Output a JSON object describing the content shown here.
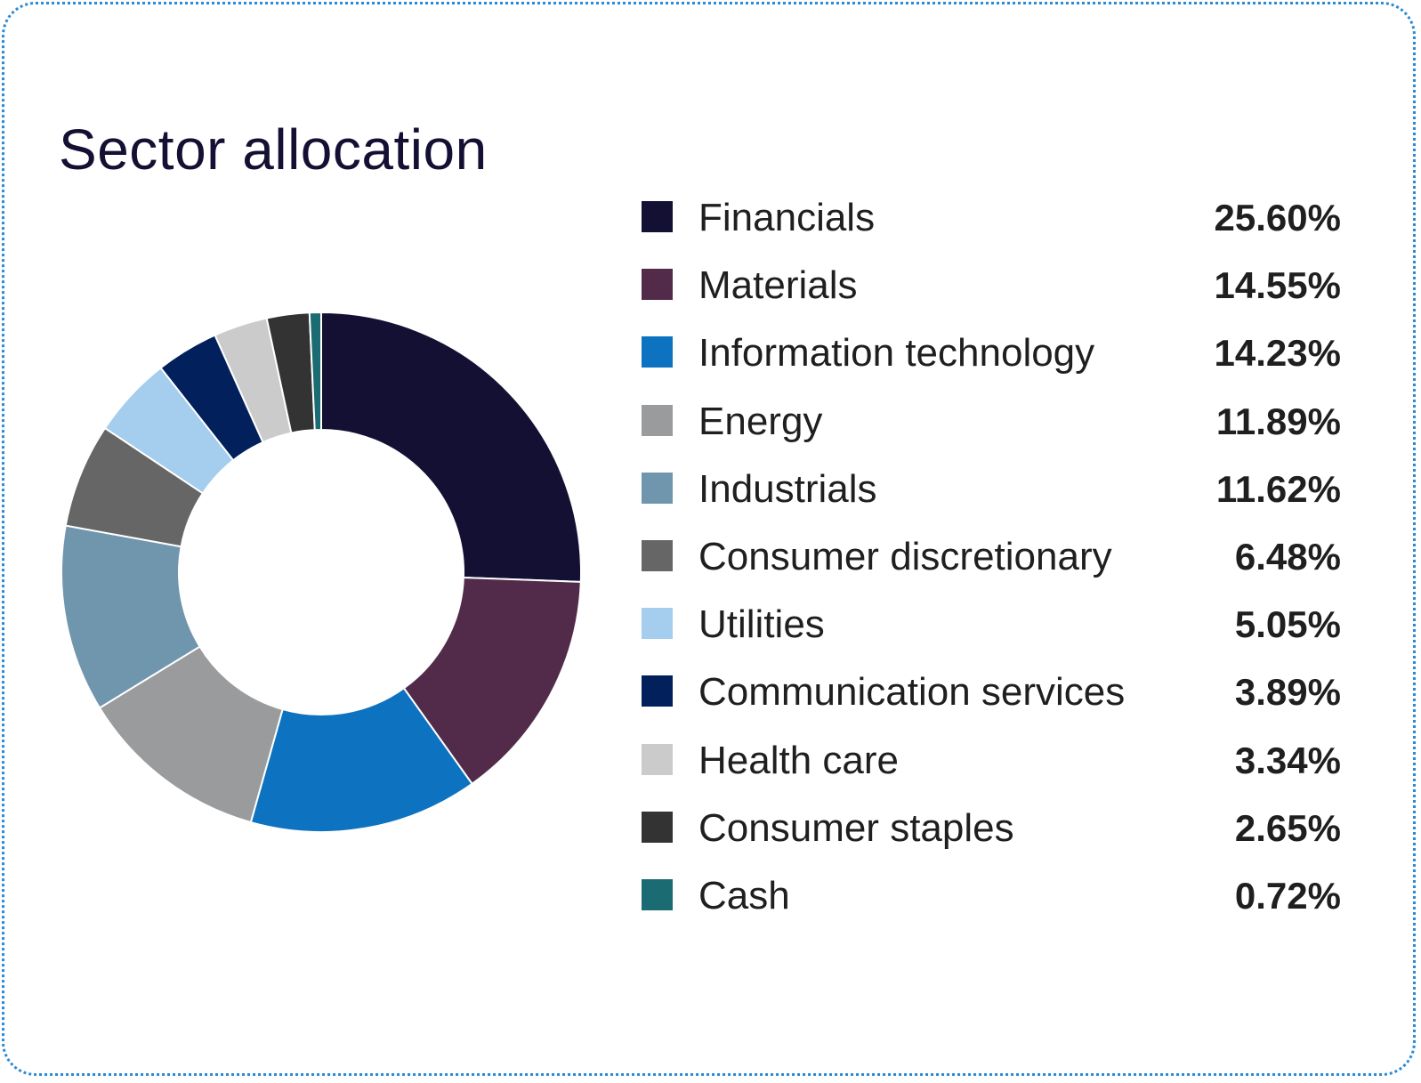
{
  "chart_data": {
    "type": "pie",
    "variant": "donut",
    "title": "Sector allocation",
    "unit": "%",
    "categories": [
      "Financials",
      "Materials",
      "Information technology",
      "Energy",
      "Industrials",
      "Consumer discretionary",
      "Utilities",
      "Communication services",
      "Health care",
      "Consumer staples",
      "Cash"
    ],
    "values": [
      25.6,
      14.55,
      14.23,
      11.89,
      11.62,
      6.48,
      5.05,
      3.89,
      3.34,
      2.65,
      0.72
    ],
    "value_labels": [
      "25.60%",
      "14.55%",
      "14.23%",
      "11.89%",
      "11.62%",
      "6.48%",
      "5.05%",
      "3.89%",
      "3.34%",
      "2.65%",
      "0.72%"
    ],
    "colors": [
      "#131033",
      "#532b4a",
      "#0d73c0",
      "#9a9b9d",
      "#7096ae",
      "#666666",
      "#a4cdee",
      "#02205c",
      "#cbcbcb",
      "#333333",
      "#1b6b72"
    ],
    "legend_position": "right"
  }
}
